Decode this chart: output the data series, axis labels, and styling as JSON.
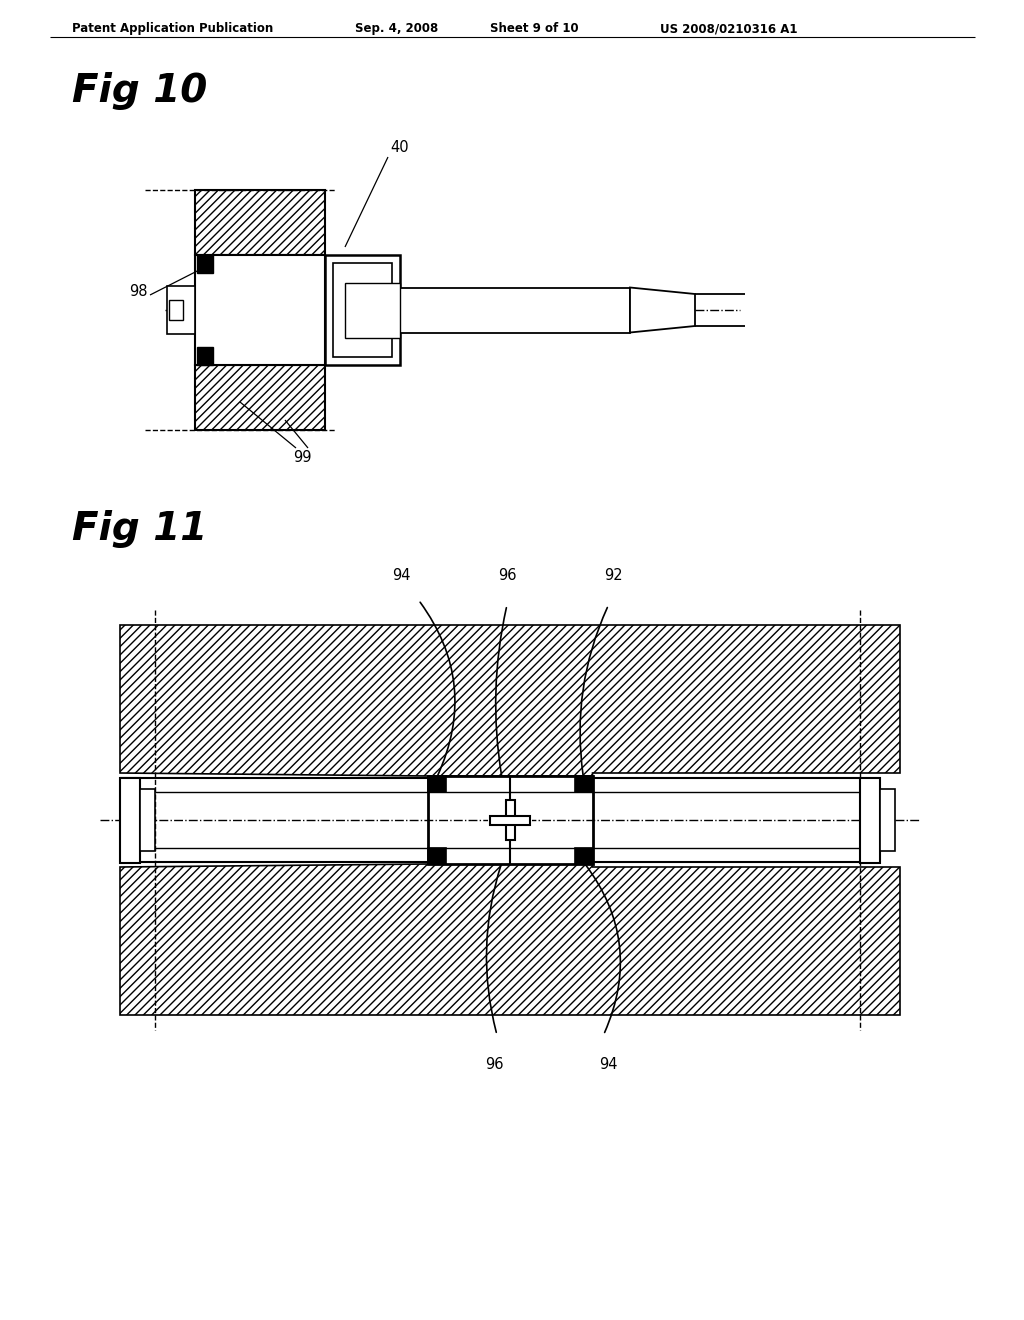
{
  "background_color": "#ffffff",
  "header_text": "Patent Application Publication",
  "header_date": "Sep. 4, 2008",
  "header_sheet": "Sheet 9 of 10",
  "header_patent": "US 2008/0210316 A1",
  "fig10_label": "Fig 10",
  "fig11_label": "Fig 11",
  "label_40": "40",
  "label_98": "98",
  "label_99": "99",
  "label_94": "94",
  "label_96": "96",
  "label_92": "92"
}
